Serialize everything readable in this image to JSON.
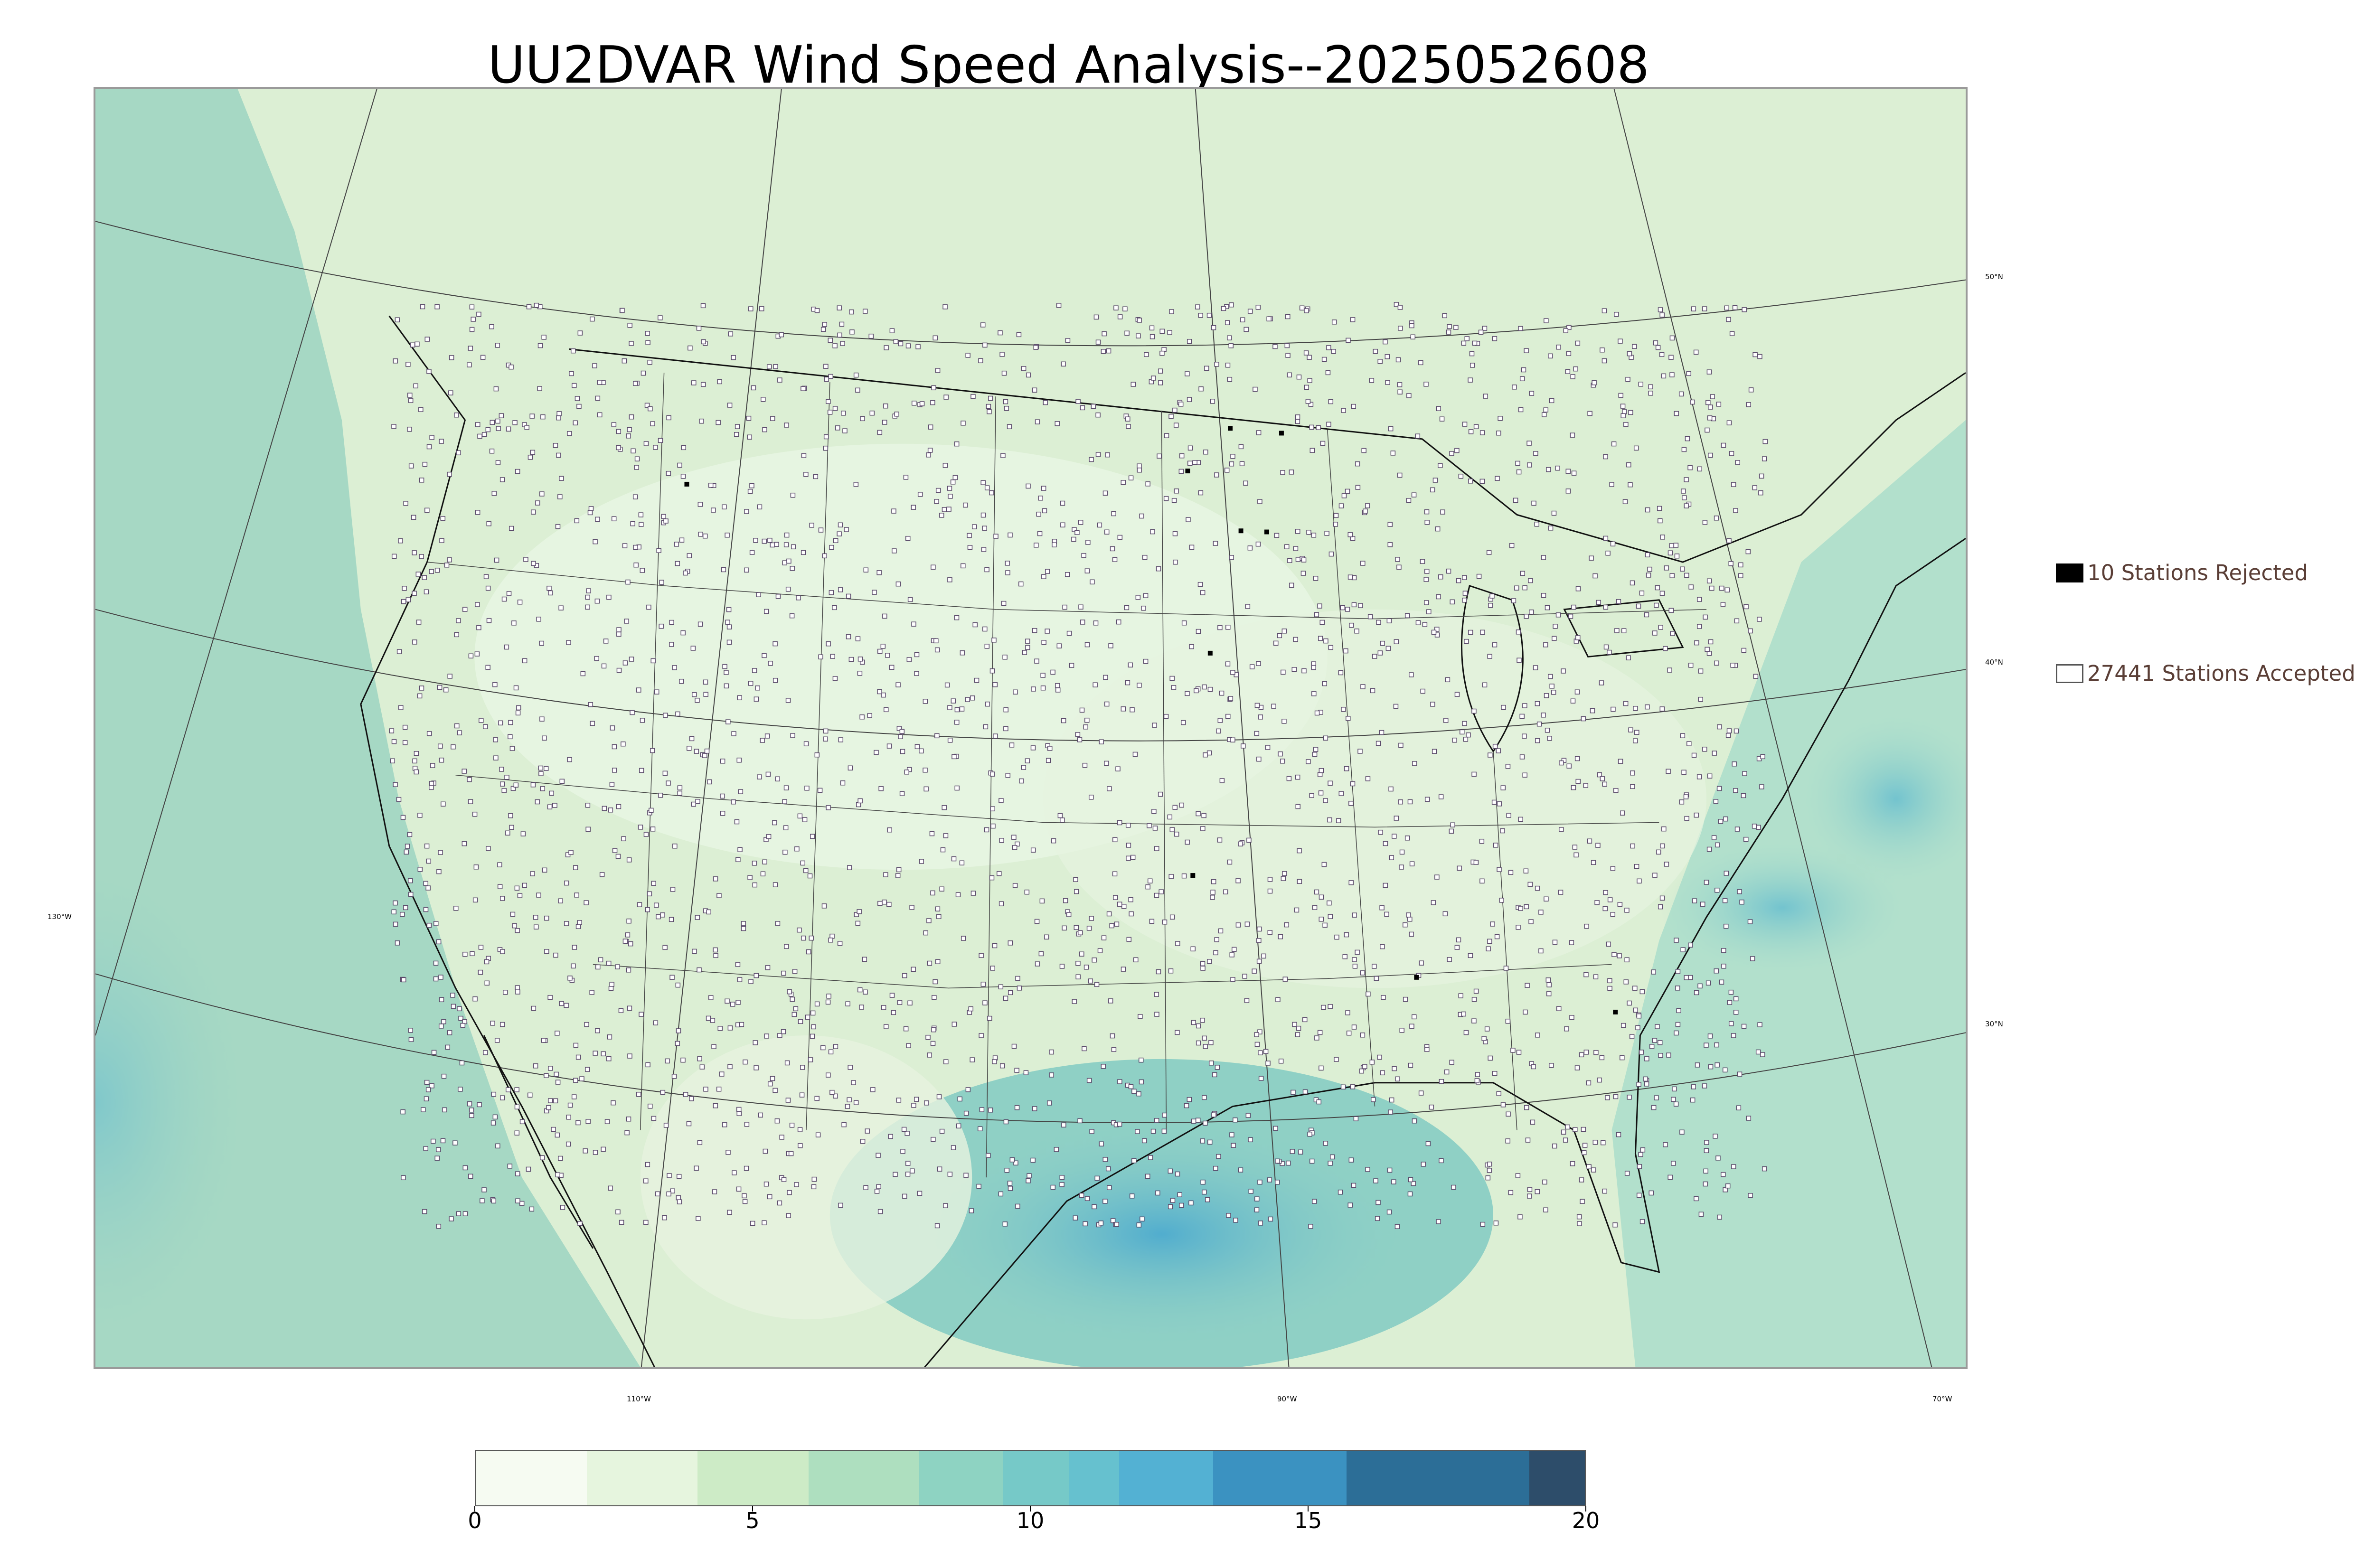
{
  "title": "UU2DVAR Wind Speed Analysis--2025052608",
  "map": {
    "latitude_labels": [
      "50°N",
      "40°N",
      "30°N"
    ],
    "longitude_labels": [
      "130°W",
      "110°W",
      "90°W",
      "70°W"
    ],
    "colors": {
      "land_wind": "#dff0d8",
      "ocean_wind": "#9bd3c4",
      "coastline": "#000000",
      "boundaries": "#333333",
      "gridlines": "#444444",
      "station_marker": "#5a4a6a"
    }
  },
  "legend": {
    "rejected_label": "10 Stations Rejected",
    "accepted_label": "27441 Stations Accepted",
    "rejected_color": "#000000",
    "accepted_color": "#ffffff"
  },
  "colorbar": {
    "min": 0,
    "max": 20,
    "tick_labels": [
      "0",
      "5",
      "10",
      "15",
      "20"
    ],
    "tick_values": [
      0,
      5,
      10,
      15,
      20
    ],
    "segments": [
      {
        "from": 0,
        "to": 2,
        "color": "#f6fbf2"
      },
      {
        "from": 2,
        "to": 4,
        "color": "#e6f5de"
      },
      {
        "from": 4,
        "to": 6,
        "color": "#cdebc6"
      },
      {
        "from": 6,
        "to": 8,
        "color": "#aedfbf"
      },
      {
        "from": 8,
        "to": 9.5,
        "color": "#8ed3c2"
      },
      {
        "from": 9.5,
        "to": 10.7,
        "color": "#76c9c8"
      },
      {
        "from": 10.7,
        "to": 11.6,
        "color": "#66c1cf"
      },
      {
        "from": 11.6,
        "to": 13.3,
        "color": "#53b1d3"
      },
      {
        "from": 13.3,
        "to": 15.7,
        "color": "#3b92c1"
      },
      {
        "from": 15.7,
        "to": 19,
        "color": "#2c6e97"
      },
      {
        "from": 19,
        "to": 20,
        "color": "#2d4d6a"
      }
    ]
  }
}
